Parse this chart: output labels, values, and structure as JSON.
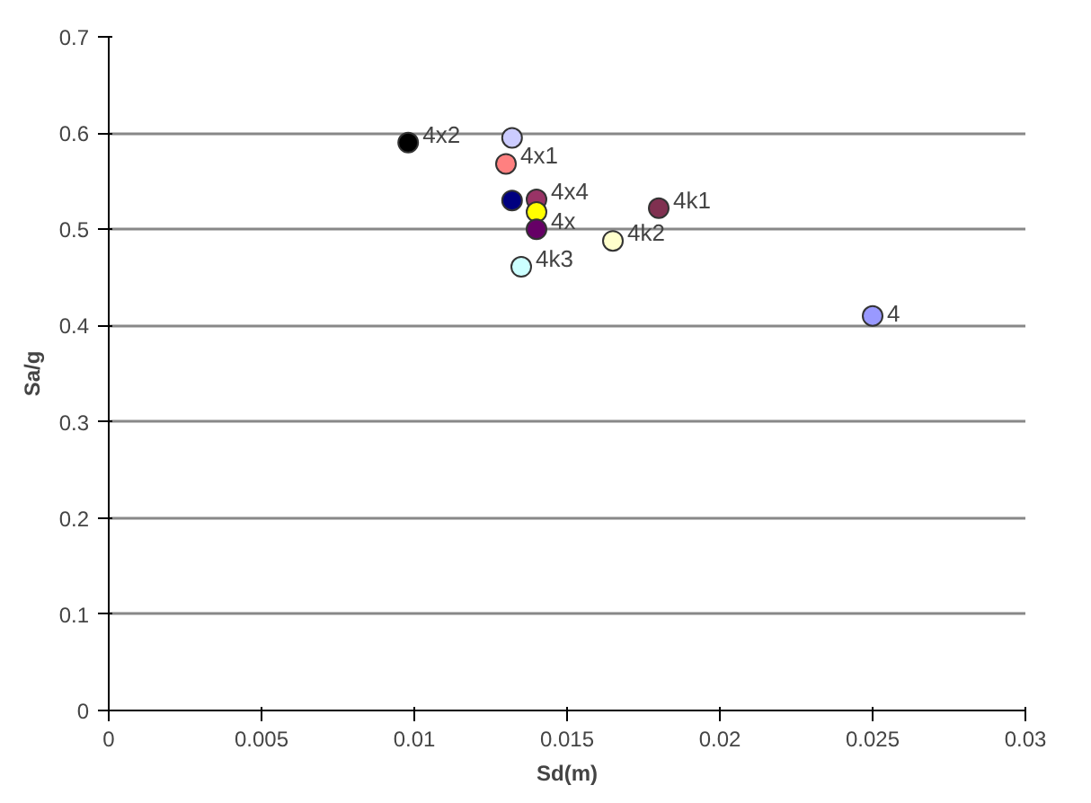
{
  "chart_data": {
    "type": "scatter",
    "xlabel": "Sd(m)",
    "ylabel": "Sa/g",
    "xlim": [
      0,
      0.03
    ],
    "xticks": [
      0,
      0.005,
      0.01,
      0.015,
      0.02,
      0.025,
      0.03
    ],
    "ylim": [
      0,
      0.7
    ],
    "yticks": [
      0,
      0.1,
      0.2,
      0.3,
      0.4,
      0.5,
      0.6,
      0.7
    ],
    "grid": "y",
    "marker": "circle",
    "series": [
      {
        "name": "4x2",
        "color": "#000000",
        "x": [
          0.0098
        ],
        "values": [
          0.59
        ]
      },
      {
        "color": "#ccccff",
        "x": [
          0.0132
        ],
        "values": [
          0.595
        ]
      },
      {
        "name": "4x1",
        "color": "#ff8080",
        "x": [
          0.013
        ],
        "values": [
          0.568
        ]
      },
      {
        "color": "#000080",
        "x": [
          0.0132
        ],
        "values": [
          0.53
        ]
      },
      {
        "name": "4x4",
        "color": "#993366",
        "x": [
          0.014
        ],
        "values": [
          0.531
        ]
      },
      {
        "color": "#ffff00",
        "x": [
          0.014
        ],
        "values": [
          0.518
        ]
      },
      {
        "name": "4x",
        "color": "#660066",
        "x": [
          0.014
        ],
        "values": [
          0.5
        ]
      },
      {
        "name": "4k2",
        "color": "#ffffcc",
        "x": [
          0.0165
        ],
        "values": [
          0.488
        ]
      },
      {
        "name": "4k1",
        "color": "#803050",
        "x": [
          0.018
        ],
        "values": [
          0.522
        ]
      },
      {
        "name": "4k3",
        "color": "#ccffff",
        "x": [
          0.0135
        ],
        "values": [
          0.461
        ]
      },
      {
        "name": "4",
        "color": "#9999ff",
        "x": [
          0.025
        ],
        "values": [
          0.41
        ]
      }
    ]
  }
}
